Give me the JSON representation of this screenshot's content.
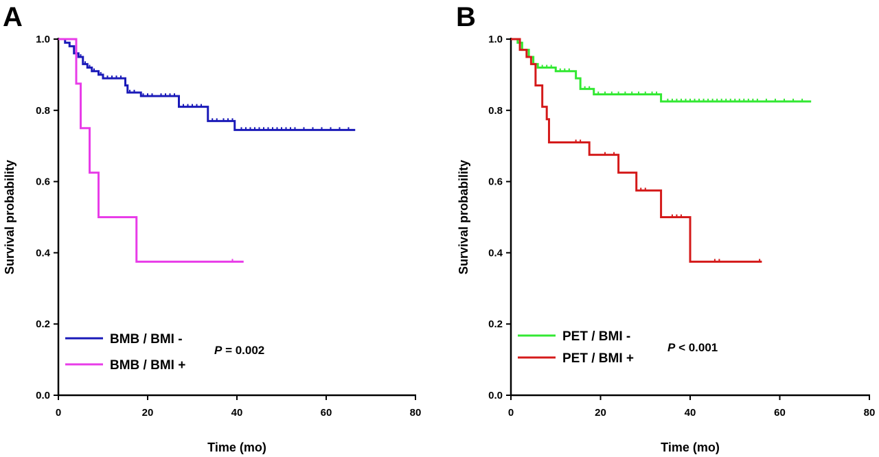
{
  "chart_data": [
    {
      "type": "line",
      "subtype": "kaplan-meier",
      "panel_label": "A",
      "xlabel": "Time (mo)",
      "ylabel": "Survival probability",
      "xlim": [
        0,
        80
      ],
      "ylim": [
        0,
        1.0
      ],
      "xticks": [
        "0",
        "20",
        "40",
        "60",
        "80"
      ],
      "yticks": [
        "0.0",
        "0.2",
        "0.4",
        "0.6",
        "0.8",
        "1.0"
      ],
      "grid": false,
      "legend_position": "bottom-left",
      "p_value": {
        "prefix": "P",
        "text": " = 0.002"
      },
      "series": [
        {
          "name": "BMB / BMI -",
          "color": "#1a1ab8",
          "steps": [
            [
              0,
              1.0
            ],
            [
              1.5,
              0.99
            ],
            [
              2.5,
              0.98
            ],
            [
              3.5,
              0.96
            ],
            [
              4.5,
              0.95
            ],
            [
              5.5,
              0.93
            ],
            [
              6.5,
              0.92
            ],
            [
              7.5,
              0.91
            ],
            [
              9,
              0.9
            ],
            [
              10,
              0.89
            ],
            [
              15,
              0.87
            ],
            [
              15.5,
              0.85
            ],
            [
              18.5,
              0.84
            ],
            [
              27,
              0.81
            ],
            [
              33.5,
              0.77
            ],
            [
              39.5,
              0.745
            ],
            [
              66.5,
              0.745
            ]
          ],
          "censored": [
            [
              4,
              0.96
            ],
            [
              5,
              0.95
            ],
            [
              6,
              0.93
            ],
            [
              7,
              0.92
            ],
            [
              8,
              0.91
            ],
            [
              9.5,
              0.9
            ],
            [
              11,
              0.89
            ],
            [
              12,
              0.89
            ],
            [
              13,
              0.89
            ],
            [
              14,
              0.89
            ],
            [
              16,
              0.85
            ],
            [
              17,
              0.85
            ],
            [
              19,
              0.84
            ],
            [
              20,
              0.84
            ],
            [
              21,
              0.84
            ],
            [
              23,
              0.84
            ],
            [
              24,
              0.84
            ],
            [
              25,
              0.84
            ],
            [
              26,
              0.84
            ],
            [
              28,
              0.81
            ],
            [
              29,
              0.81
            ],
            [
              30,
              0.81
            ],
            [
              31,
              0.81
            ],
            [
              32,
              0.81
            ],
            [
              34.5,
              0.77
            ],
            [
              35.5,
              0.77
            ],
            [
              37,
              0.77
            ],
            [
              38,
              0.77
            ],
            [
              39,
              0.77
            ],
            [
              41,
              0.745
            ],
            [
              42,
              0.745
            ],
            [
              43,
              0.745
            ],
            [
              44,
              0.745
            ],
            [
              45,
              0.745
            ],
            [
              46,
              0.745
            ],
            [
              47,
              0.745
            ],
            [
              48,
              0.745
            ],
            [
              49,
              0.745
            ],
            [
              50,
              0.745
            ],
            [
              51,
              0.745
            ],
            [
              52,
              0.745
            ],
            [
              53,
              0.745
            ],
            [
              55,
              0.745
            ],
            [
              57,
              0.745
            ],
            [
              59,
              0.745
            ],
            [
              61,
              0.745
            ],
            [
              63,
              0.745
            ],
            [
              65,
              0.745
            ]
          ]
        },
        {
          "name": "BMB / BMI +",
          "color": "#e83ce8",
          "steps": [
            [
              0,
              1.0
            ],
            [
              4,
              0.875
            ],
            [
              5,
              0.75
            ],
            [
              7,
              0.625
            ],
            [
              9,
              0.5
            ],
            [
              17.5,
              0.375
            ],
            [
              41.5,
              0.375
            ]
          ],
          "censored": [
            [
              39,
              0.375
            ]
          ]
        }
      ]
    },
    {
      "type": "line",
      "subtype": "kaplan-meier",
      "panel_label": "B",
      "xlabel": "Time (mo)",
      "ylabel": "Survival probability",
      "xlim": [
        0,
        80
      ],
      "ylim": [
        0,
        1.0
      ],
      "xticks": [
        "0",
        "20",
        "40",
        "60",
        "80"
      ],
      "yticks": [
        "0.0",
        "0.2",
        "0.4",
        "0.6",
        "0.8",
        "1.0"
      ],
      "grid": false,
      "legend_position": "bottom-left",
      "p_value": {
        "prefix": "P",
        "text": " < 0.001"
      },
      "series": [
        {
          "name": "PET / BMI -",
          "color": "#33e833",
          "steps": [
            [
              0,
              1.0
            ],
            [
              1.5,
              0.99
            ],
            [
              2.5,
              0.97
            ],
            [
              4,
              0.95
            ],
            [
              5,
              0.93
            ],
            [
              6,
              0.92
            ],
            [
              10,
              0.91
            ],
            [
              14.5,
              0.89
            ],
            [
              15.5,
              0.86
            ],
            [
              18.5,
              0.845
            ],
            [
              33.5,
              0.825
            ],
            [
              67,
              0.825
            ]
          ],
          "censored": [
            [
              7,
              0.92
            ],
            [
              8,
              0.92
            ],
            [
              9,
              0.92
            ],
            [
              11,
              0.91
            ],
            [
              12,
              0.91
            ],
            [
              13,
              0.91
            ],
            [
              16.5,
              0.86
            ],
            [
              17.5,
              0.86
            ],
            [
              19.5,
              0.845
            ],
            [
              21,
              0.845
            ],
            [
              22.5,
              0.845
            ],
            [
              24,
              0.845
            ],
            [
              25.5,
              0.845
            ],
            [
              27,
              0.845
            ],
            [
              28.5,
              0.845
            ],
            [
              30,
              0.845
            ],
            [
              31.5,
              0.845
            ],
            [
              32.5,
              0.845
            ],
            [
              35,
              0.825
            ],
            [
              36,
              0.825
            ],
            [
              37,
              0.825
            ],
            [
              38,
              0.825
            ],
            [
              39,
              0.825
            ],
            [
              40,
              0.825
            ],
            [
              41,
              0.825
            ],
            [
              42,
              0.825
            ],
            [
              43,
              0.825
            ],
            [
              44,
              0.825
            ],
            [
              45,
              0.825
            ],
            [
              46,
              0.825
            ],
            [
              47,
              0.825
            ],
            [
              48,
              0.825
            ],
            [
              49,
              0.825
            ],
            [
              50,
              0.825
            ],
            [
              51,
              0.825
            ],
            [
              52,
              0.825
            ],
            [
              53,
              0.825
            ],
            [
              54,
              0.825
            ],
            [
              55,
              0.825
            ],
            [
              57,
              0.825
            ],
            [
              59,
              0.825
            ],
            [
              61,
              0.825
            ],
            [
              63,
              0.825
            ],
            [
              65,
              0.825
            ]
          ]
        },
        {
          "name": "PET / BMI +",
          "color": "#d41a1a",
          "steps": [
            [
              0,
              1.0
            ],
            [
              2,
              0.97
            ],
            [
              3.5,
              0.95
            ],
            [
              4.5,
              0.93
            ],
            [
              5.5,
              0.87
            ],
            [
              7,
              0.81
            ],
            [
              8,
              0.775
            ],
            [
              8.5,
              0.71
            ],
            [
              17.5,
              0.675
            ],
            [
              24,
              0.625
            ],
            [
              28,
              0.575
            ],
            [
              33.5,
              0.5
            ],
            [
              40,
              0.375
            ],
            [
              56,
              0.375
            ]
          ],
          "censored": [
            [
              14.5,
              0.71
            ],
            [
              15.5,
              0.71
            ],
            [
              21,
              0.675
            ],
            [
              23,
              0.675
            ],
            [
              29,
              0.575
            ],
            [
              30,
              0.575
            ],
            [
              36,
              0.5
            ],
            [
              37,
              0.5
            ],
            [
              38,
              0.5
            ],
            [
              45.5,
              0.375
            ],
            [
              46.5,
              0.375
            ],
            [
              55.5,
              0.375
            ]
          ]
        }
      ]
    }
  ]
}
